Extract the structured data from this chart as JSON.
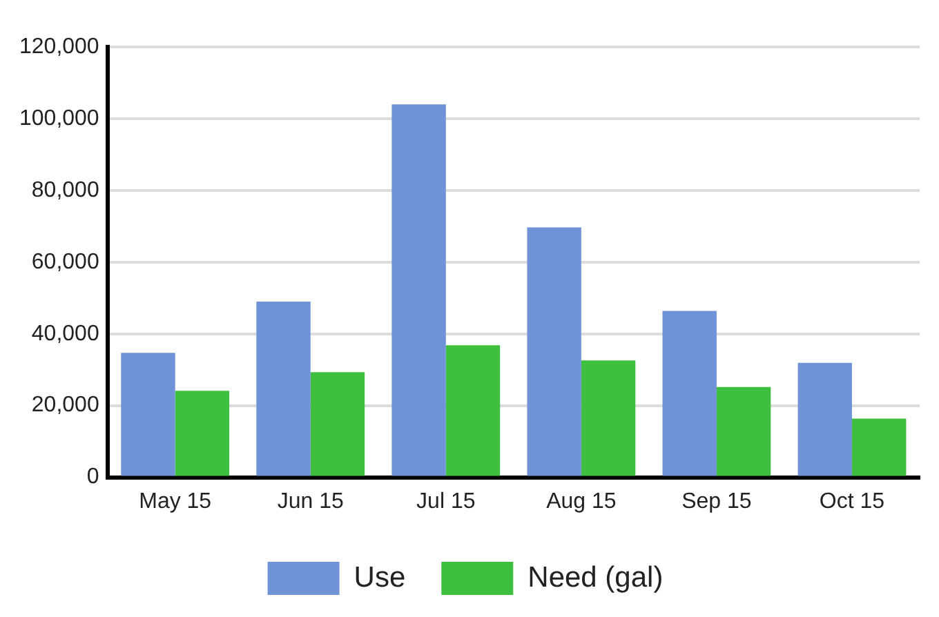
{
  "chart_data": {
    "type": "bar",
    "categories": [
      "May 15",
      "Jun 15",
      "Jul 15",
      "Aug 15",
      "Sep 15",
      "Oct 15"
    ],
    "series": [
      {
        "name": "Use",
        "color": "#6f93d6",
        "values": [
          34700,
          49000,
          104000,
          69700,
          46400,
          31900
        ]
      },
      {
        "name": "Need (gal)",
        "color": "#3fbf3f",
        "values": [
          24100,
          29300,
          36800,
          32600,
          25200,
          16400
        ]
      }
    ],
    "ylim": [
      0,
      120000
    ],
    "yticks": [
      {
        "value": 0,
        "label": "0"
      },
      {
        "value": 20000,
        "label": "20,000"
      },
      {
        "value": 40000,
        "label": "40,000"
      },
      {
        "value": 60000,
        "label": "60,000"
      },
      {
        "value": 80000,
        "label": "80,000"
      },
      {
        "value": 100000,
        "label": "100,000"
      },
      {
        "value": 120000,
        "label": "120,000"
      }
    ],
    "grid": "y",
    "legend": "bottom"
  }
}
